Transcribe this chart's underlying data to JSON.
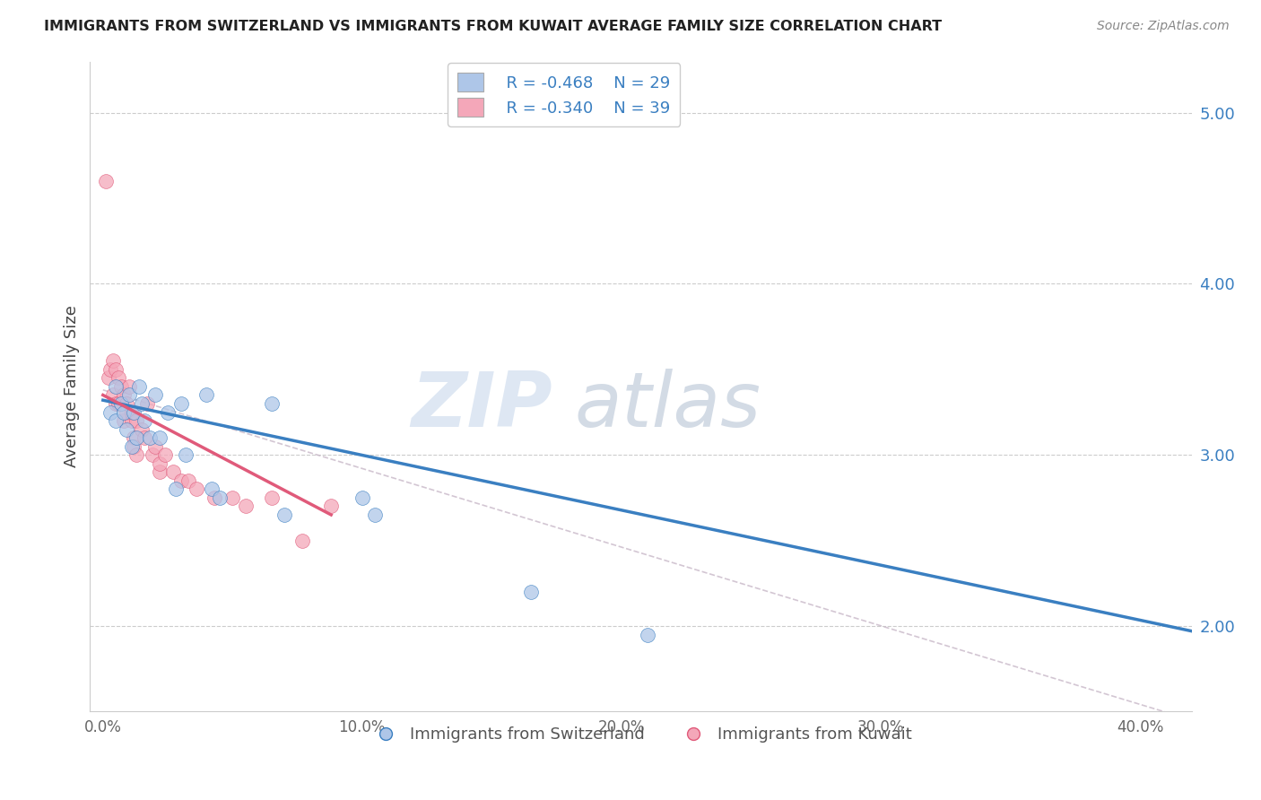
{
  "title": "IMMIGRANTS FROM SWITZERLAND VS IMMIGRANTS FROM KUWAIT AVERAGE FAMILY SIZE CORRELATION CHART",
  "source": "Source: ZipAtlas.com",
  "ylabel": "Average Family Size",
  "xlabel_ticks": [
    "0.0%",
    "10.0%",
    "20.0%",
    "30.0%",
    "40.0%"
  ],
  "xlabel_tick_vals": [
    0.0,
    0.1,
    0.2,
    0.3,
    0.4
  ],
  "ylim": [
    1.5,
    5.3
  ],
  "xlim": [
    -0.005,
    0.42
  ],
  "yticks": [
    2.0,
    3.0,
    4.0,
    5.0
  ],
  "legend_label1": "Immigrants from Switzerland",
  "legend_label2": "Immigrants from Kuwait",
  "legend_r1": "R = -0.468",
  "legend_n1": "N = 29",
  "legend_r2": "R = -0.340",
  "legend_n2": "N = 39",
  "color_swiss": "#aec6e8",
  "color_kuwait": "#f4a7b9",
  "color_swiss_line": "#3a7fc1",
  "color_kuwait_line": "#e05a7a",
  "color_dashed": "#c8b8c8",
  "watermark_zip": "ZIP",
  "watermark_atlas": "atlas",
  "swiss_x": [
    0.003,
    0.005,
    0.005,
    0.007,
    0.008,
    0.009,
    0.01,
    0.011,
    0.012,
    0.013,
    0.014,
    0.015,
    0.016,
    0.018,
    0.02,
    0.022,
    0.025,
    0.028,
    0.03,
    0.032,
    0.04,
    0.042,
    0.045,
    0.065,
    0.07,
    0.1,
    0.105,
    0.165,
    0.21
  ],
  "swiss_y": [
    3.25,
    3.4,
    3.2,
    3.3,
    3.25,
    3.15,
    3.35,
    3.05,
    3.25,
    3.1,
    3.4,
    3.3,
    3.2,
    3.1,
    3.35,
    3.1,
    3.25,
    2.8,
    3.3,
    3.0,
    3.35,
    2.8,
    2.75,
    3.3,
    2.65,
    2.75,
    2.65,
    2.2,
    1.95
  ],
  "kuwait_x": [
    0.001,
    0.002,
    0.003,
    0.004,
    0.004,
    0.005,
    0.005,
    0.006,
    0.006,
    0.007,
    0.008,
    0.008,
    0.009,
    0.009,
    0.01,
    0.011,
    0.011,
    0.012,
    0.012,
    0.013,
    0.013,
    0.015,
    0.016,
    0.017,
    0.019,
    0.02,
    0.022,
    0.022,
    0.024,
    0.027,
    0.03,
    0.033,
    0.036,
    0.043,
    0.05,
    0.055,
    0.065,
    0.077,
    0.088
  ],
  "kuwait_y": [
    4.6,
    3.45,
    3.5,
    3.55,
    3.35,
    3.5,
    3.3,
    3.45,
    3.3,
    3.4,
    3.35,
    3.2,
    3.3,
    3.25,
    3.4,
    3.2,
    3.25,
    3.1,
    3.05,
    3.2,
    3.0,
    3.15,
    3.1,
    3.3,
    3.0,
    3.05,
    2.9,
    2.95,
    3.0,
    2.9,
    2.85,
    2.85,
    2.8,
    2.75,
    2.75,
    2.7,
    2.75,
    2.5,
    2.7
  ],
  "swiss_line_x": [
    0.0,
    0.42
  ],
  "swiss_line_y": [
    3.32,
    1.97
  ],
  "kuwait_line_x": [
    0.0,
    0.088
  ],
  "kuwait_line_y": [
    3.35,
    2.65
  ],
  "dashed_line_x": [
    0.0,
    0.42
  ],
  "dashed_line_y": [
    3.38,
    1.45
  ]
}
